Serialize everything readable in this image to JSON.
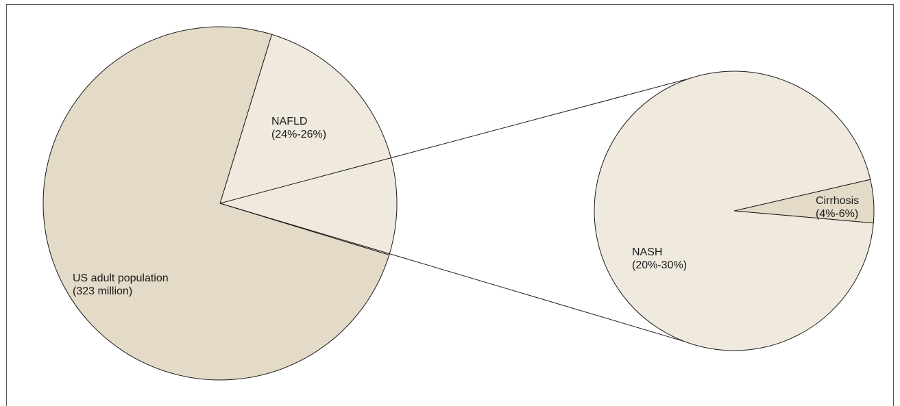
{
  "chart_data": [
    {
      "type": "pie",
      "slices": [
        {
          "label": "NAFLD",
          "range": "(24%-26%)",
          "value": 25,
          "color": "#efe9de"
        },
        {
          "label": "US adult population",
          "range": "(323 million)",
          "value": 75,
          "color": "#e3dac7"
        }
      ]
    },
    {
      "type": "pie",
      "slices": [
        {
          "label": "Cirrhosis",
          "range": "(4%-6%)",
          "value": 5,
          "color": "#e3dac7"
        },
        {
          "label": "NASH",
          "range": "(20%-30%)",
          "value": 95,
          "color": "#efe9de"
        }
      ]
    }
  ],
  "colors": {
    "border": "#555555",
    "stroke": "#1a1a1a",
    "background": "#ffffff"
  }
}
